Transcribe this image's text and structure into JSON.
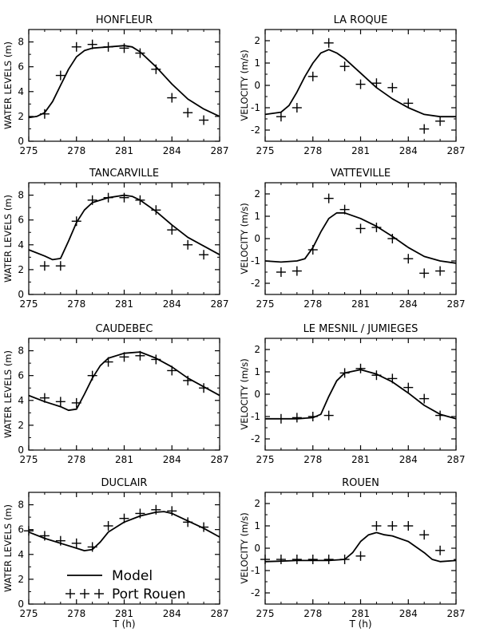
{
  "chart_data": [
    {
      "type": "line",
      "title": "HONFLEUR",
      "ylabel": "WATER LEVELS (m)",
      "xlabel": "",
      "xlim": [
        275,
        287
      ],
      "ylim": [
        0,
        9
      ],
      "xticks": [
        275,
        278,
        281,
        284,
        287
      ],
      "yticks": [
        0,
        2,
        4,
        6,
        8
      ],
      "series": [
        {
          "name": "Model",
          "kind": "line",
          "x": [
            275,
            275.5,
            276,
            276.5,
            277,
            277.5,
            278,
            278.5,
            279,
            280,
            281,
            281.5,
            282,
            283,
            284,
            285,
            286,
            287
          ],
          "y": [
            1.9,
            2.0,
            2.3,
            3.2,
            4.5,
            5.8,
            6.8,
            7.3,
            7.5,
            7.6,
            7.7,
            7.6,
            7.2,
            6.0,
            4.6,
            3.4,
            2.6,
            2.0
          ]
        },
        {
          "name": "Port Rouen",
          "kind": "marker",
          "x": [
            276,
            277,
            278,
            279,
            280,
            281,
            282,
            283,
            284,
            285,
            286
          ],
          "y": [
            2.2,
            5.3,
            7.6,
            7.8,
            7.6,
            7.5,
            7.1,
            5.8,
            3.5,
            2.3,
            1.7
          ]
        }
      ]
    },
    {
      "type": "line",
      "title": "LA ROQUE",
      "ylabel": "VELOCITY (m/s)",
      "xlabel": "",
      "xlim": [
        275,
        287
      ],
      "ylim": [
        -2.5,
        2.5
      ],
      "xticks": [
        275,
        278,
        281,
        284,
        287
      ],
      "yticks": [
        -2,
        -1,
        0,
        1,
        2
      ],
      "series": [
        {
          "name": "Model",
          "kind": "line",
          "x": [
            275,
            276,
            276.5,
            277,
            277.5,
            278,
            278.5,
            279,
            279.5,
            280,
            281,
            282,
            283,
            284,
            285,
            286,
            287
          ],
          "y": [
            -1.3,
            -1.2,
            -0.9,
            -0.3,
            0.4,
            1.0,
            1.45,
            1.6,
            1.45,
            1.2,
            0.55,
            -0.1,
            -0.6,
            -1.0,
            -1.3,
            -1.4,
            -1.4
          ]
        },
        {
          "name": "Port Rouen",
          "kind": "marker",
          "x": [
            276,
            277,
            278,
            279,
            280,
            281,
            282,
            283,
            284,
            285,
            286
          ],
          "y": [
            -1.4,
            -1.0,
            0.4,
            1.9,
            0.85,
            0.05,
            0.1,
            -0.1,
            -0.8,
            -1.95,
            -1.6
          ]
        }
      ]
    },
    {
      "type": "line",
      "title": "TANCARVILLE",
      "ylabel": "WATER LEVELS (m)",
      "xlabel": "",
      "xlim": [
        275,
        287
      ],
      "ylim": [
        0,
        9
      ],
      "xticks": [
        275,
        278,
        281,
        284,
        287
      ],
      "yticks": [
        0,
        2,
        4,
        6,
        8
      ],
      "series": [
        {
          "name": "Model",
          "kind": "line",
          "x": [
            275,
            276,
            276.5,
            277,
            277.5,
            278,
            278.5,
            279,
            280,
            281,
            281.5,
            282,
            283,
            284,
            285,
            286,
            287
          ],
          "y": [
            3.6,
            3.1,
            2.8,
            2.9,
            4.3,
            5.8,
            6.8,
            7.4,
            7.8,
            8.0,
            7.9,
            7.6,
            6.7,
            5.6,
            4.6,
            3.9,
            3.2
          ]
        },
        {
          "name": "Port Rouen",
          "kind": "marker",
          "x": [
            276,
            277,
            278,
            279,
            280,
            281,
            282,
            283,
            284,
            285,
            286
          ],
          "y": [
            2.3,
            2.3,
            5.9,
            7.6,
            7.8,
            7.8,
            7.6,
            6.8,
            5.2,
            4.0,
            3.2
          ]
        }
      ]
    },
    {
      "type": "line",
      "title": "VATTEVILLE",
      "ylabel": "VELOCITY (m/s)",
      "xlabel": "",
      "xlim": [
        275,
        287
      ],
      "ylim": [
        -2.5,
        2.5
      ],
      "xticks": [
        275,
        278,
        281,
        284,
        287
      ],
      "yticks": [
        -2,
        -1,
        0,
        1,
        2
      ],
      "series": [
        {
          "name": "Model",
          "kind": "line",
          "x": [
            275,
            276,
            277,
            277.5,
            278,
            278.5,
            279,
            279.5,
            280,
            281,
            282,
            283,
            284,
            285,
            286,
            287
          ],
          "y": [
            -1.0,
            -1.05,
            -1.0,
            -0.9,
            -0.4,
            0.3,
            0.9,
            1.15,
            1.15,
            0.9,
            0.55,
            0.1,
            -0.4,
            -0.8,
            -1.0,
            -1.1
          ]
        },
        {
          "name": "Port Rouen",
          "kind": "marker",
          "x": [
            276,
            277,
            278,
            279,
            280,
            281,
            282,
            283,
            284,
            285,
            286
          ],
          "y": [
            -1.5,
            -1.45,
            -0.5,
            1.8,
            1.3,
            0.45,
            0.5,
            0.0,
            -0.9,
            -1.55,
            -1.45
          ]
        }
      ]
    },
    {
      "type": "line",
      "title": "CAUDEBEC",
      "ylabel": "WATER LEVELS (m)",
      "xlabel": "",
      "xlim": [
        275,
        287
      ],
      "ylim": [
        0,
        9
      ],
      "xticks": [
        275,
        278,
        281,
        284,
        287
      ],
      "yticks": [
        0,
        2,
        4,
        6,
        8
      ],
      "series": [
        {
          "name": "Model",
          "kind": "line",
          "x": [
            275,
            276,
            277,
            277.5,
            278,
            278.5,
            279,
            279.5,
            280,
            281,
            282,
            283,
            284,
            285,
            286,
            287
          ],
          "y": [
            4.4,
            3.9,
            3.5,
            3.2,
            3.3,
            4.5,
            5.8,
            6.8,
            7.4,
            7.8,
            7.9,
            7.4,
            6.7,
            5.8,
            5.1,
            4.4
          ]
        },
        {
          "name": "Port Rouen",
          "kind": "marker",
          "x": [
            276,
            277,
            278,
            279,
            280,
            281,
            282,
            283,
            284,
            285,
            286
          ],
          "y": [
            4.2,
            3.9,
            3.8,
            6.0,
            7.1,
            7.5,
            7.6,
            7.3,
            6.4,
            5.6,
            5.0
          ]
        }
      ]
    },
    {
      "type": "line",
      "title": "LE MESNIL / JUMIEGES",
      "ylabel": "VELOCITY (m/s)",
      "xlabel": "",
      "xlim": [
        275,
        287
      ],
      "ylim": [
        -2.5,
        2.5
      ],
      "xticks": [
        275,
        278,
        281,
        284,
        287
      ],
      "yticks": [
        -2,
        -1,
        0,
        1,
        2
      ],
      "series": [
        {
          "name": "Model",
          "kind": "line",
          "x": [
            275,
            276,
            277,
            278,
            278.5,
            279,
            279.5,
            280,
            281,
            282,
            283,
            284,
            285,
            286,
            287
          ],
          "y": [
            -1.1,
            -1.1,
            -1.1,
            -1.05,
            -0.9,
            -0.1,
            0.6,
            0.95,
            1.1,
            0.9,
            0.55,
            0.05,
            -0.5,
            -0.9,
            -1.1
          ]
        },
        {
          "name": "Port Rouen",
          "kind": "marker",
          "x": [
            276,
            277,
            278,
            279,
            280,
            281,
            282,
            283,
            284,
            285,
            286
          ],
          "y": [
            -1.1,
            -1.05,
            -1.0,
            -0.95,
            0.95,
            1.15,
            0.85,
            0.7,
            0.3,
            -0.2,
            -0.95
          ]
        }
      ]
    },
    {
      "type": "line",
      "title": "DUCLAIR",
      "ylabel": "WATER LEVELS (m)",
      "xlabel": "T (h)",
      "xlim": [
        275,
        287
      ],
      "ylim": [
        0,
        9
      ],
      "xticks": [
        275,
        278,
        281,
        284,
        287
      ],
      "yticks": [
        0,
        2,
        4,
        6,
        8
      ],
      "series": [
        {
          "name": "Model",
          "kind": "line",
          "x": [
            275,
            276,
            277,
            278,
            278.5,
            279,
            279.5,
            280,
            281,
            282,
            283,
            283.5,
            284,
            285,
            286,
            287
          ],
          "y": [
            5.8,
            5.3,
            4.9,
            4.5,
            4.3,
            4.4,
            5.0,
            5.8,
            6.6,
            7.1,
            7.4,
            7.45,
            7.3,
            6.7,
            6.1,
            5.4
          ]
        },
        {
          "name": "Port Rouen",
          "kind": "marker",
          "x": [
            275,
            276,
            277,
            278,
            279,
            280,
            281,
            282,
            283,
            284,
            285,
            286
          ],
          "y": [
            5.9,
            5.5,
            5.1,
            4.9,
            4.6,
            6.3,
            6.9,
            7.3,
            7.6,
            7.5,
            6.6,
            6.2
          ]
        }
      ]
    },
    {
      "type": "line",
      "title": "ROUEN",
      "ylabel": "VELOCITY (m/s)",
      "xlabel": "T (h)",
      "xlim": [
        275,
        287
      ],
      "ylim": [
        -2.5,
        2.5
      ],
      "xticks": [
        275,
        278,
        281,
        284,
        287
      ],
      "yticks": [
        -2,
        -1,
        0,
        1,
        2
      ],
      "series": [
        {
          "name": "Model",
          "kind": "line",
          "x": [
            275,
            276,
            277,
            278,
            279,
            280,
            280.5,
            281,
            281.5,
            282,
            282.5,
            283,
            284,
            285,
            285.5,
            286,
            287
          ],
          "y": [
            -0.6,
            -0.58,
            -0.55,
            -0.55,
            -0.55,
            -0.5,
            -0.2,
            0.3,
            0.6,
            0.7,
            0.6,
            0.55,
            0.3,
            -0.2,
            -0.5,
            -0.6,
            -0.55
          ]
        },
        {
          "name": "Port Rouen",
          "kind": "marker",
          "x": [
            275,
            276,
            277,
            278,
            279,
            280,
            281,
            282,
            283,
            284,
            285,
            286
          ],
          "y": [
            -0.5,
            -0.5,
            -0.5,
            -0.5,
            -0.5,
            -0.5,
            -0.35,
            1.0,
            1.0,
            1.0,
            0.6,
            -0.1
          ]
        }
      ]
    }
  ],
  "legend": {
    "model_label": "Model",
    "obs_label": "Port Rouen",
    "placement": "lower-left of DUCLAIR panel"
  }
}
